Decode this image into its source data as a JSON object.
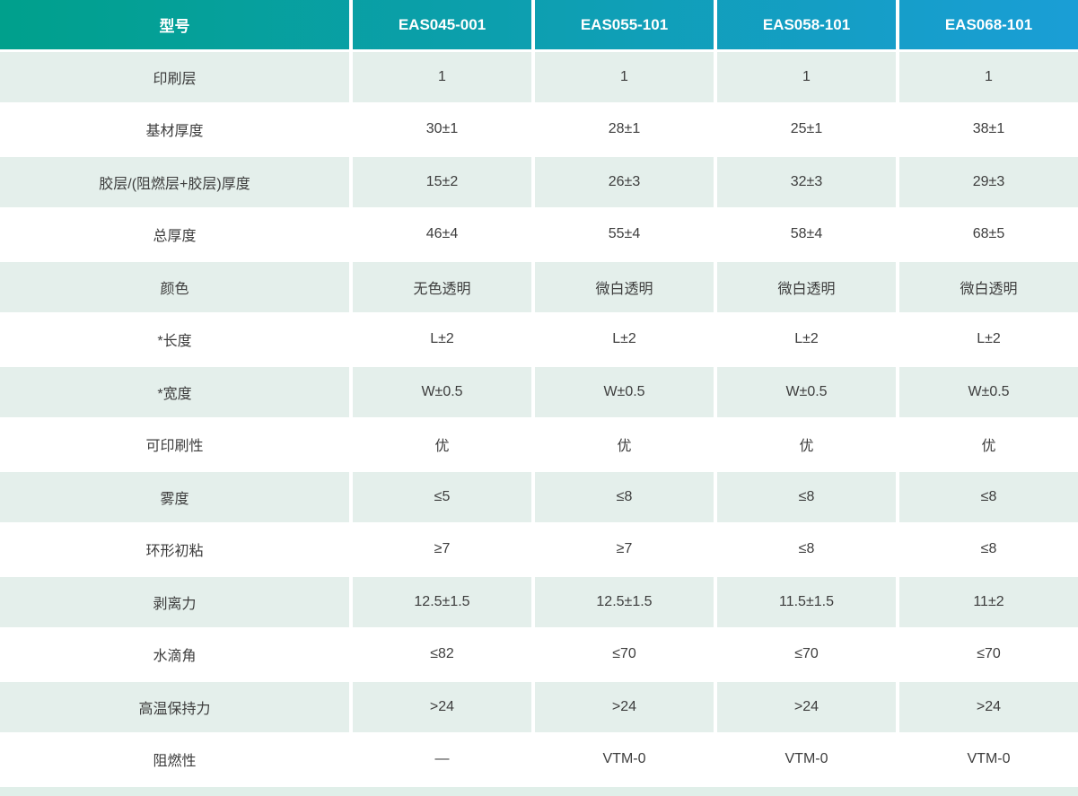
{
  "table": {
    "header": {
      "label": "型号",
      "models": [
        "EAS045-001",
        "EAS055-101",
        "EAS058-101",
        "EAS068-101"
      ]
    },
    "rows": [
      {
        "label": "印刷层",
        "values": [
          "1",
          "1",
          "1",
          "1"
        ]
      },
      {
        "label": "基材厚度",
        "values": [
          "30±1",
          "28±1",
          "25±1",
          "38±1"
        ]
      },
      {
        "label": "胶层/(阻燃层+胶层)厚度",
        "values": [
          "15±2",
          "26±3",
          "32±3",
          "29±3"
        ]
      },
      {
        "label": "总厚度",
        "values": [
          "46±4",
          "55±4",
          "58±4",
          "68±5"
        ]
      },
      {
        "label": "颜色",
        "values": [
          "无色透明",
          "微白透明",
          "微白透明",
          "微白透明"
        ]
      },
      {
        "label": "*长度",
        "values": [
          "L±2",
          "L±2",
          "L±2",
          "L±2"
        ]
      },
      {
        "label": "*宽度",
        "values": [
          "W±0.5",
          "W±0.5",
          "W±0.5",
          "W±0.5"
        ]
      },
      {
        "label": "可印刷性",
        "values": [
          "优",
          "优",
          "优",
          "优"
        ]
      },
      {
        "label": "雾度",
        "values": [
          "≤5",
          "≤8",
          "≤8",
          "≤8"
        ]
      },
      {
        "label": "环形初粘",
        "values": [
          "≥7",
          "≥7",
          "≤8",
          "≤8"
        ]
      },
      {
        "label": "剥离力",
        "values": [
          "12.5±1.5",
          "12.5±1.5",
          "11.5±1.5",
          "11±2"
        ]
      },
      {
        "label": "水滴角",
        "values": [
          "≤82",
          "≤70",
          "≤70",
          "≤70"
        ]
      },
      {
        "label": "高温保持力",
        "values": [
          ">24",
          ">24",
          ">24",
          ">24"
        ]
      },
      {
        "label": "阻燃性",
        "values": [
          "—",
          "VTM-0",
          "VTM-0",
          "VTM-0"
        ]
      }
    ],
    "colors": {
      "header_gradient_start": "#00a08c",
      "header_gradient_end": "#1a9ed6",
      "header_text": "#ffffff",
      "shaded_row_bg": "#e4efeb",
      "body_text": "#3d3d3d",
      "bottom_band_bg": "#e0efe9"
    }
  }
}
